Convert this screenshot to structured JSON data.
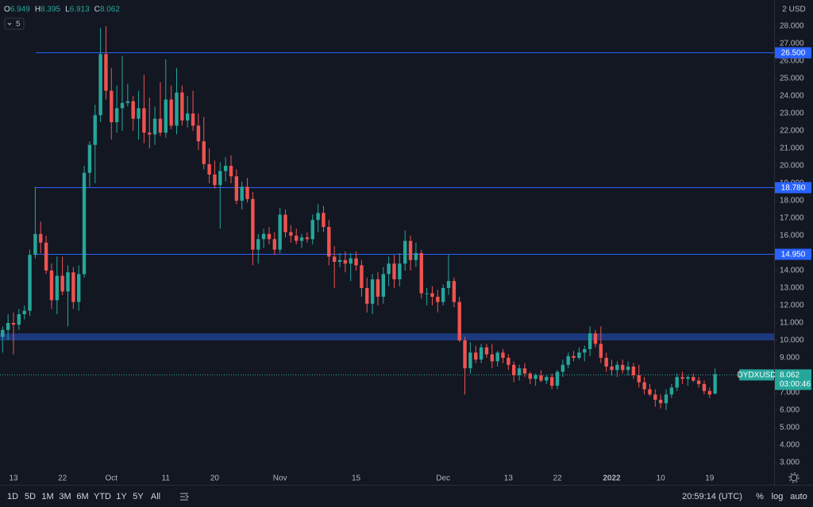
{
  "chart_data": {
    "type": "candlestick",
    "header": [
      {
        "key": "O",
        "value": "6.949"
      },
      {
        "key": "H",
        "value": "8.395"
      },
      {
        "key": "L",
        "value": "6.913"
      },
      {
        "key": "C",
        "value": "8.062"
      }
    ],
    "badge": "5",
    "currency": "2 USD",
    "categories": [
      null,
      null,
      "13",
      null,
      null,
      null,
      null,
      null,
      null,
      null,
      null,
      "22",
      null,
      null,
      null,
      null,
      null,
      null,
      null,
      null,
      "Oct",
      null,
      null,
      null,
      null,
      null,
      null,
      null,
      null,
      null,
      "11",
      null,
      null,
      null,
      null,
      null,
      null,
      null,
      null,
      "20",
      null,
      null,
      null,
      null,
      null,
      null,
      null,
      null,
      null,
      null,
      null,
      "Nov",
      null,
      null,
      null,
      null,
      null,
      null,
      null,
      null,
      null,
      null,
      null,
      null,
      null,
      "15",
      null,
      null,
      null,
      null,
      null,
      null,
      null,
      null,
      null,
      null,
      null,
      null,
      null,
      null,
      null,
      "Dec",
      null,
      null,
      null,
      null,
      null,
      null,
      null,
      null,
      null,
      null,
      null,
      "13",
      null,
      null,
      null,
      null,
      null,
      null,
      null,
      null,
      "22",
      null,
      null,
      null,
      null,
      null,
      null,
      null,
      null,
      null,
      "2022",
      null,
      null,
      null,
      null,
      null,
      null,
      null,
      null,
      "10",
      null,
      null,
      null,
      null,
      null,
      null,
      null,
      null,
      "19",
      null
    ],
    "open": [
      10.2,
      10.6,
      11.0,
      10.9,
      11.5,
      11.7,
      14.9,
      16.1,
      15.6,
      14.0,
      12.3,
      13.7,
      12.8,
      13.9,
      12.2,
      13.8,
      19.6,
      21.2,
      22.9,
      26.4,
      24.3,
      22.5,
      23.3,
      23.6,
      23.7,
      22.7,
      23.3,
      21.9,
      21.8,
      22.7,
      21.9,
      23.8,
      22.3,
      24.2,
      22.6,
      23.0,
      22.3,
      21.4,
      20.1,
      19.5,
      18.9,
      19.7,
      20.0,
      19.4,
      18.0,
      18.8,
      18.1,
      15.2,
      15.8,
      16.1,
      15.8,
      15.2,
      17.2,
      16.2,
      16.0,
      15.7,
      15.9,
      15.8,
      16.9,
      17.3,
      16.5,
      14.8,
      14.5,
      14.6,
      14.4,
      14.7,
      14.3,
      13.0,
      12.1,
      13.5,
      12.5,
      13.8,
      14.4,
      13.5,
      14.4,
      15.7,
      14.6,
      15.0,
      12.7,
      12.7,
      12.5,
      12.2,
      13.0,
      13.4,
      12.2,
      10.0,
      8.4,
      9.3,
      8.9,
      9.6,
      9.2,
      8.8,
      9.3,
      9.0,
      8.6,
      8.0,
      8.4,
      8.1,
      7.8,
      8.0,
      7.7,
      7.9,
      7.4,
      8.2,
      8.6,
      9.1,
      9.0,
      9.3,
      9.5,
      10.4,
      9.8,
      9.0,
      8.5,
      8.3,
      8.6,
      8.3,
      8.5,
      8.0,
      7.6,
      7.2,
      6.9,
      6.6,
      6.4,
      6.9,
      7.3,
      7.9,
      7.8,
      7.9,
      7.7,
      7.5,
      7.1,
      6.949
    ],
    "high": [
      10.8,
      11.5,
      11.6,
      11.8,
      12.0,
      15.2,
      18.8,
      16.8,
      16.0,
      14.4,
      14.8,
      14.8,
      14.3,
      14.2,
      14.3,
      20.0,
      21.4,
      23.5,
      27.9,
      28.0,
      25.6,
      24.6,
      26.3,
      24.7,
      24.0,
      24.3,
      25.2,
      23.9,
      23.4,
      24.8,
      26.1,
      24.6,
      25.6,
      24.6,
      24.0,
      24.3,
      23.0,
      22.8,
      21.0,
      20.3,
      20.2,
      20.5,
      20.6,
      19.8,
      19.1,
      19.3,
      18.5,
      16.1,
      16.4,
      16.5,
      16.2,
      17.6,
      17.5,
      16.6,
      16.4,
      16.1,
      16.2,
      17.2,
      17.8,
      17.7,
      16.9,
      15.4,
      15.0,
      15.1,
      15.0,
      15.1,
      14.6,
      13.6,
      13.8,
      13.9,
      14.2,
      14.8,
      14.9,
      15.0,
      16.3,
      16.0,
      15.6,
      15.2,
      13.0,
      13.1,
      12.9,
      13.2,
      14.9,
      13.6,
      12.5,
      10.2,
      9.9,
      9.7,
      9.8,
      9.8,
      9.8,
      9.4,
      9.5,
      9.2,
      8.8,
      8.6,
      8.7,
      8.2,
      8.1,
      8.3,
      8.0,
      8.1,
      8.3,
      8.9,
      9.3,
      9.4,
      9.6,
      9.7,
      10.8,
      10.6,
      10.8,
      9.3,
      8.9,
      8.8,
      8.9,
      8.8,
      8.7,
      8.6,
      7.9,
      7.5,
      7.2,
      6.9,
      7.2,
      7.5,
      8.1,
      8.2,
      8.0,
      8.1,
      7.9,
      7.7,
      7.3,
      8.395
    ],
    "low": [
      9.3,
      10.0,
      9.2,
      10.6,
      11.2,
      11.4,
      14.7,
      15.0,
      13.8,
      11.8,
      11.5,
      12.6,
      10.8,
      11.8,
      11.7,
      13.6,
      18.8,
      19.0,
      22.5,
      23.8,
      21.5,
      21.9,
      22.0,
      23.4,
      22.0,
      21.5,
      21.3,
      21.0,
      21.2,
      21.7,
      21.6,
      22.1,
      21.8,
      22.3,
      22.2,
      22.0,
      20.9,
      19.8,
      19.0,
      18.7,
      16.4,
      19.1,
      19.0,
      17.8,
      17.5,
      17.9,
      14.3,
      14.4,
      15.3,
      15.5,
      14.9,
      15.0,
      15.9,
      15.6,
      15.5,
      15.3,
      15.6,
      15.5,
      16.2,
      16.2,
      14.3,
      13.0,
      14.2,
      13.9,
      13.4,
      14.0,
      12.5,
      11.6,
      11.5,
      12.0,
      12.1,
      13.1,
      13.0,
      13.1,
      14.0,
      14.0,
      14.2,
      12.4,
      12.0,
      12.0,
      11.6,
      12.0,
      12.6,
      11.9,
      9.9,
      6.9,
      8.1,
      8.7,
      8.7,
      9.0,
      8.4,
      8.5,
      8.7,
      8.3,
      7.6,
      7.7,
      7.9,
      7.5,
      7.4,
      7.6,
      7.5,
      7.2,
      7.2,
      7.9,
      8.4,
      8.8,
      8.9,
      8.8,
      9.1,
      9.6,
      8.7,
      8.2,
      8.0,
      7.9,
      8.1,
      8.0,
      7.8,
      7.3,
      6.9,
      6.8,
      6.2,
      6.1,
      6.0,
      6.7,
      7.1,
      7.5,
      7.4,
      7.6,
      7.3,
      6.9,
      6.7,
      6.913
    ],
    "close": [
      10.6,
      11.0,
      10.9,
      11.5,
      11.7,
      14.9,
      16.1,
      15.6,
      14.0,
      12.3,
      13.7,
      12.8,
      13.9,
      12.2,
      13.8,
      19.6,
      21.2,
      22.9,
      26.4,
      24.3,
      22.5,
      23.3,
      23.6,
      23.7,
      22.7,
      23.3,
      21.9,
      21.8,
      22.7,
      21.9,
      23.8,
      22.3,
      24.2,
      22.6,
      23.0,
      22.3,
      21.4,
      20.1,
      19.5,
      18.9,
      19.7,
      20.0,
      19.4,
      18.0,
      18.8,
      18.1,
      15.2,
      15.8,
      16.1,
      15.8,
      15.2,
      17.2,
      16.2,
      16.0,
      15.7,
      15.9,
      15.8,
      16.9,
      17.3,
      16.5,
      14.8,
      14.5,
      14.6,
      14.4,
      14.7,
      14.3,
      13.0,
      12.1,
      13.5,
      12.5,
      13.8,
      14.4,
      13.5,
      14.4,
      15.7,
      14.6,
      15.0,
      12.7,
      12.7,
      12.5,
      12.2,
      13.0,
      13.4,
      12.2,
      10.0,
      8.4,
      9.3,
      8.9,
      9.6,
      9.2,
      8.8,
      9.3,
      9.0,
      8.6,
      8.0,
      8.4,
      8.1,
      7.8,
      8.0,
      7.7,
      7.9,
      7.4,
      8.2,
      8.6,
      9.1,
      9.0,
      9.3,
      9.5,
      10.4,
      9.8,
      9.0,
      8.5,
      8.3,
      8.6,
      8.3,
      8.5,
      8.0,
      7.6,
      7.2,
      6.9,
      6.6,
      6.4,
      6.9,
      7.3,
      7.9,
      7.8,
      7.9,
      7.7,
      7.5,
      7.1,
      6.9,
      8.062
    ],
    "up_color": "#26a69a",
    "down_color": "#ef5350",
    "ylim": [
      2.5,
      29.5
    ],
    "yticks": [
      {
        "value": 3,
        "label": "3.000"
      },
      {
        "value": 4,
        "label": "4.000"
      },
      {
        "value": 5,
        "label": "5.000"
      },
      {
        "value": 6,
        "label": "6.000"
      },
      {
        "value": 7,
        "label": "7.000"
      },
      {
        "value": 8,
        "label": "8.000"
      },
      {
        "value": 9,
        "label": "9.000"
      },
      {
        "value": 10,
        "label": "10.000"
      },
      {
        "value": 11,
        "label": "11.000"
      },
      {
        "value": 12,
        "label": "12.000"
      },
      {
        "value": 13,
        "label": "13.000"
      },
      {
        "value": 14,
        "label": "14.000"
      },
      {
        "value": 15,
        "label": "15.000"
      },
      {
        "value": 16,
        "label": "16.000"
      },
      {
        "value": 17,
        "label": "17.000"
      },
      {
        "value": 18,
        "label": "18.000"
      },
      {
        "value": 19,
        "label": "19.000"
      },
      {
        "value": 20,
        "label": "20.000"
      },
      {
        "value": 21,
        "label": "21.000"
      },
      {
        "value": 22,
        "label": "22.000"
      },
      {
        "value": 23,
        "label": "23.000"
      },
      {
        "value": 24,
        "label": "24.000"
      },
      {
        "value": 25,
        "label": "25.000"
      },
      {
        "value": 26,
        "label": "26.000"
      },
      {
        "value": 27,
        "label": "27.000"
      },
      {
        "value": 28,
        "label": "28.000"
      }
    ],
    "levels": [
      {
        "value": 26.5,
        "label": "26.500"
      },
      {
        "value": 18.78,
        "label": "18.780"
      },
      {
        "value": 14.95,
        "label": "14.950"
      }
    ],
    "level_color": "#2962ff",
    "zone": [
      10.0,
      10.4
    ],
    "zone_color": "#1e3f8f",
    "last_price": {
      "value": 8.062,
      "label": "8.062",
      "countdown": "03:00:46",
      "symbol": "DYDXUSD"
    },
    "toolbar": {
      "ranges": [
        "1D",
        "5D",
        "1M",
        "3M",
        "6M",
        "YTD",
        "1Y",
        "5Y",
        "All"
      ],
      "clock": "20:59:14 (UTC)",
      "options": [
        "%",
        "log",
        "auto"
      ]
    }
  }
}
